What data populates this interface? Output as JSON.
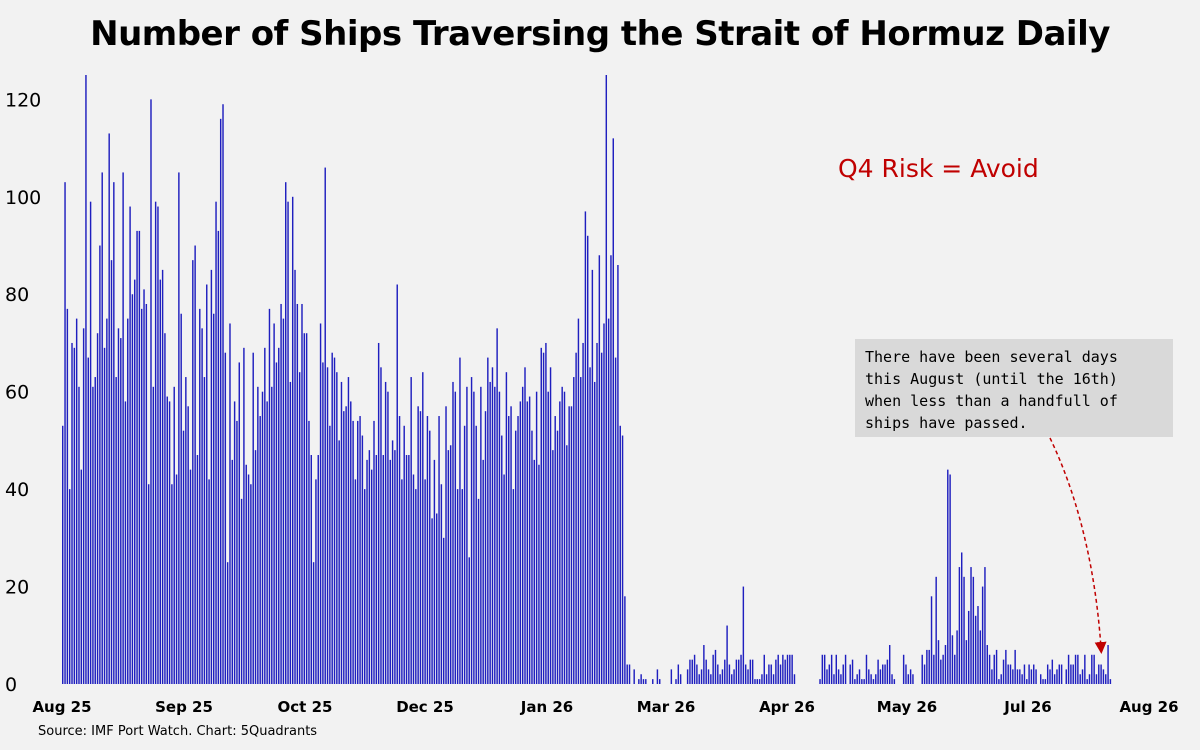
{
  "chart_data": {
    "type": "bar",
    "title": "Number of Ships Traversing the Strait of Hormuz Daily",
    "xlabel": "",
    "ylabel": "",
    "ylim": [
      0,
      125
    ],
    "yticks": [
      0,
      20,
      40,
      60,
      80,
      100,
      120
    ],
    "x_tick_labels": [
      "Aug 25",
      "Sep 25",
      "Oct 25",
      "Dec 25",
      "Jan 26",
      "Mar 26",
      "Apr 26",
      "May 26",
      "Jul 26",
      "Aug 26"
    ],
    "bar_color": "#1f1fbf",
    "grid": false,
    "values": [
      53,
      103,
      77,
      40,
      70,
      69,
      75,
      61,
      44,
      73,
      125,
      67,
      99,
      61,
      63,
      72,
      90,
      105,
      69,
      75,
      113,
      87,
      103,
      63,
      73,
      71,
      105,
      58,
      75,
      98,
      80,
      83,
      93,
      93,
      77,
      81,
      78,
      41,
      120,
      61,
      99,
      98,
      83,
      85,
      72,
      59,
      58,
      41,
      61,
      43,
      105,
      76,
      52,
      63,
      57,
      44,
      87,
      90,
      47,
      77,
      73,
      63,
      82,
      42,
      85,
      76,
      99,
      93,
      116,
      119,
      68,
      25,
      74,
      46,
      58,
      54,
      66,
      38,
      69,
      45,
      43,
      41,
      68,
      48,
      61,
      55,
      60,
      69,
      58,
      77,
      61,
      74,
      66,
      69,
      78,
      75,
      103,
      99,
      62,
      100,
      85,
      78,
      64,
      78,
      72,
      72,
      54,
      47,
      25,
      42,
      47,
      74,
      66,
      106,
      65,
      53,
      68,
      67,
      64,
      50,
      62,
      56,
      57,
      63,
      58,
      54,
      42,
      54,
      55,
      51,
      40,
      46,
      48,
      44,
      54,
      47,
      70,
      65,
      47,
      62,
      60,
      46,
      50,
      48,
      82,
      55,
      42,
      53,
      47,
      47,
      63,
      43,
      40,
      57,
      56,
      64,
      42,
      55,
      52,
      34,
      46,
      35,
      55,
      41,
      30,
      57,
      48,
      49,
      62,
      60,
      40,
      67,
      40,
      53,
      61,
      26,
      63,
      60,
      53,
      38,
      61,
      46,
      56,
      67,
      62,
      65,
      61,
      73,
      60,
      51,
      43,
      64,
      55,
      57,
      40,
      52,
      55,
      58,
      61,
      65,
      58,
      59,
      52,
      46,
      60,
      45,
      69,
      68,
      70,
      60,
      65,
      48,
      55,
      52,
      58,
      61,
      60,
      49,
      57,
      57,
      63,
      68,
      75,
      63,
      70,
      97,
      92,
      65,
      85,
      62,
      70,
      88,
      68,
      74,
      125,
      75,
      88,
      112,
      67,
      86,
      53,
      51,
      18,
      4,
      4,
      0,
      3,
      0,
      1,
      2,
      1,
      1,
      0,
      0,
      1,
      0,
      3,
      1,
      0,
      0,
      0,
      0,
      3,
      0,
      1,
      4,
      2,
      0,
      0,
      3,
      5,
      5,
      6,
      4,
      2,
      3,
      8,
      5,
      3,
      2,
      6,
      7,
      4,
      2,
      3,
      5,
      12,
      4,
      2,
      3,
      5,
      5,
      6,
      20,
      4,
      3,
      5,
      5,
      1,
      1,
      1,
      2,
      6,
      2,
      4,
      4,
      2,
      5,
      6,
      4,
      6,
      5,
      6,
      6,
      6,
      2,
      0,
      0,
      0,
      0,
      0,
      0,
      0,
      0,
      0,
      0,
      1,
      6,
      6,
      3,
      4,
      6,
      2,
      6,
      3,
      2,
      4,
      6,
      0,
      4,
      5,
      1,
      2,
      3,
      1,
      1,
      6,
      3,
      2,
      1,
      2,
      5,
      3,
      4,
      4,
      5,
      8,
      2,
      1,
      0,
      0,
      0,
      6,
      4,
      2,
      3,
      2,
      0,
      0,
      0,
      6,
      4,
      7,
      7,
      18,
      6,
      22,
      9,
      5,
      6,
      8,
      44,
      43,
      10,
      6,
      11,
      24,
      27,
      22,
      9,
      15,
      24,
      22,
      14,
      16,
      11,
      20,
      24,
      8,
      6,
      3,
      6,
      7,
      1,
      2,
      5,
      7,
      4,
      4,
      3,
      7,
      3,
      3,
      2,
      4,
      1,
      4,
      3,
      4,
      3,
      0,
      2,
      1,
      1,
      4,
      3,
      5,
      2,
      3,
      4,
      4,
      0,
      3,
      6,
      4,
      4,
      6,
      6,
      2,
      3,
      6,
      1,
      2,
      6,
      6,
      2,
      4,
      4,
      3,
      2,
      8,
      1
    ]
  },
  "annotations": {
    "risk_note": "Q4 Risk = Avoid",
    "callout_lines": [
      "There have been several days",
      "this August (until the 16th)",
      "when less than a handfull of",
      "ships have passed."
    ]
  },
  "source": "Source: IMF Port Watch.  Chart: 5Quadrants",
  "colors": {
    "bars": "#1f1fbf",
    "risk_text": "#c00000",
    "arrow": "#c00000",
    "background": "#f2f2f2",
    "callout_bg": "#d9d9d9"
  }
}
